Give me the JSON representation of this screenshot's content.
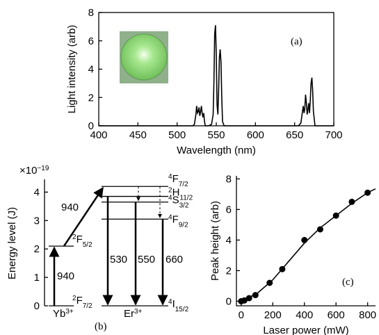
{
  "chart_data": [
    {
      "type": "line",
      "label": "(a)",
      "xlabel": "Wavelength (nm)",
      "ylabel": "Light intensity (arb)",
      "xlim": [
        400,
        700
      ],
      "ylim": [
        0,
        8
      ],
      "xticks": [
        400,
        450,
        500,
        550,
        600,
        650,
        700
      ],
      "yticks": [
        0,
        2,
        4,
        6,
        8
      ],
      "series": [
        {
          "color": "#000000",
          "x": [
            400,
            520,
            522,
            524,
            525,
            526,
            527,
            528,
            529,
            530,
            531,
            532,
            533,
            534,
            535,
            536,
            540,
            544,
            546,
            547,
            548,
            549,
            550,
            551,
            552,
            553,
            554,
            555,
            556,
            557,
            558,
            560,
            600,
            655,
            658,
            660,
            661,
            662,
            663,
            664,
            665,
            666,
            667,
            668,
            669,
            670,
            671,
            672,
            673,
            674,
            676,
            700
          ],
          "values": [
            0,
            0,
            0.1,
            0.8,
            1.4,
            0.9,
            1.0,
            1.3,
            0.7,
            1.0,
            1.4,
            0.9,
            0.6,
            0.9,
            0.3,
            0,
            0,
            0.1,
            0.8,
            3,
            6.5,
            7.1,
            5,
            1.5,
            0.8,
            2.5,
            4.8,
            5.4,
            4.5,
            2,
            0.3,
            0,
            0,
            0,
            0.2,
            1.0,
            1.4,
            0.9,
            1.2,
            2.2,
            1.6,
            0.8,
            1.1,
            1.6,
            0.9,
            1.8,
            3.0,
            3.4,
            2.5,
            1.0,
            0,
            0
          ]
        }
      ]
    },
    {
      "type": "energy-levels",
      "label": "(b)",
      "ylabel": "Energy level (J)",
      "yscale": {
        "base": "×10",
        "exponent": "−19"
      },
      "ylim": [
        0,
        4.45
      ],
      "yticks": [
        0,
        1,
        2,
        3,
        4
      ],
      "ions": [
        {
          "name": "Yb",
          "charge": "3+"
        },
        {
          "name": "Er",
          "charge": "3+"
        }
      ],
      "yb_levels": [
        {
          "sup": "2",
          "term": "F",
          "sub": "7/2",
          "energy": 0
        },
        {
          "sup": "2",
          "term": "F",
          "sub": "5/2",
          "energy": 2.1
        }
      ],
      "er_levels": [
        {
          "sup": "4",
          "term": "I",
          "sub": "15/2",
          "energy": 0
        },
        {
          "sup": "4",
          "term": "F",
          "sub": "9/2",
          "energy": 3.05
        },
        {
          "sup": "4",
          "term": "S",
          "sub": "3/2",
          "energy": 3.65
        },
        {
          "sup": "2",
          "term": "H",
          "sub": "11/2",
          "energy": 3.85
        },
        {
          "sup": "4",
          "term": "F",
          "sub": "7/2",
          "energy": 4.2
        }
      ],
      "transition_labels": [
        940,
        940,
        530,
        550,
        660
      ]
    },
    {
      "type": "scatter",
      "label": "(c)",
      "xlabel": "Laser power (mW)",
      "ylabel": "Peak height (arb)",
      "xlim": [
        -30,
        850
      ],
      "ylim": [
        -0.3,
        8.2
      ],
      "xticks": [
        0,
        200,
        400,
        600,
        800
      ],
      "yticks": [
        0,
        2,
        4,
        6,
        8
      ],
      "color": "#000000",
      "points": {
        "x": [
          0,
          20,
          50,
          90,
          180,
          260,
          400,
          500,
          600,
          700,
          800
        ],
        "values": [
          0,
          0.05,
          0.2,
          0.4,
          1.2,
          2.1,
          4.0,
          4.7,
          5.6,
          6.5,
          7.1
        ]
      },
      "fit": {
        "x": [
          0,
          100,
          200,
          300,
          400,
          500,
          600,
          700,
          800,
          850
        ],
        "values": [
          0,
          0.5,
          1.4,
          2.6,
          3.8,
          4.8,
          5.6,
          6.4,
          7.1,
          7.35
        ]
      }
    }
  ]
}
